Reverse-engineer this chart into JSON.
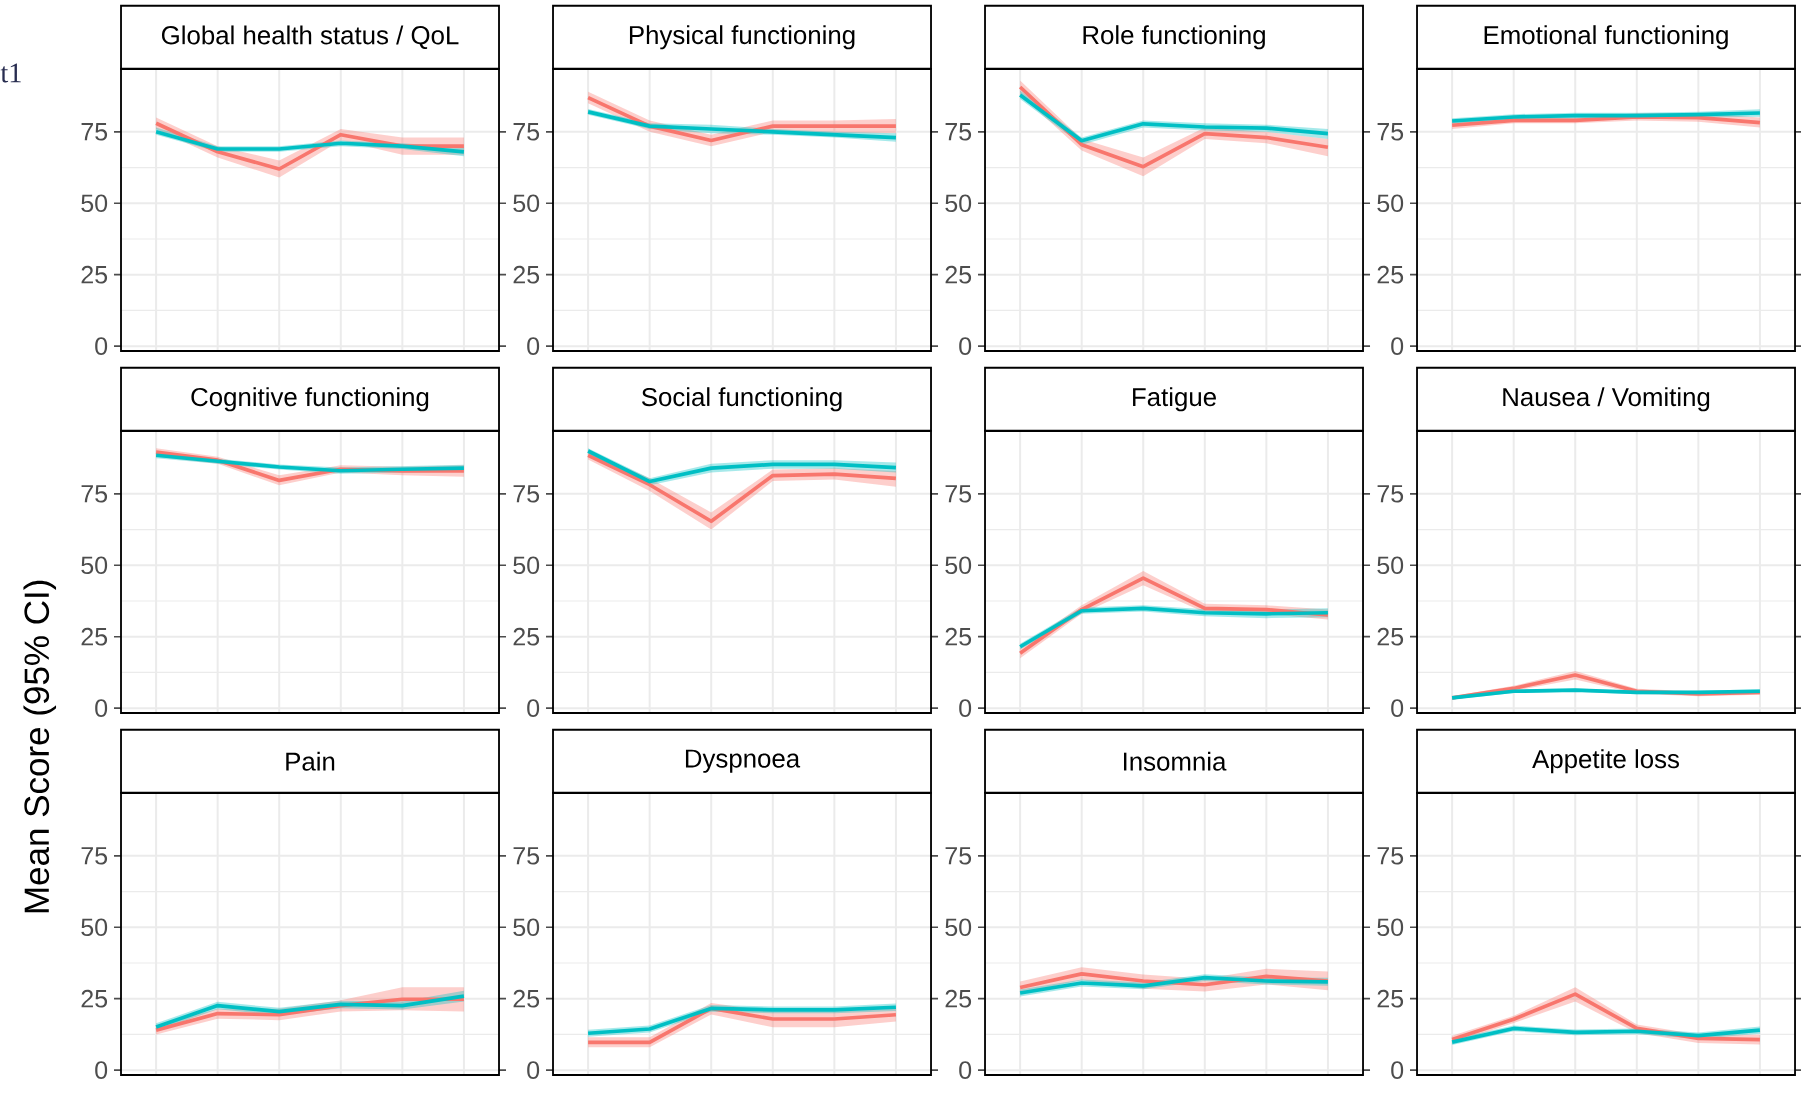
{
  "chart_data": [
    {
      "type": "line",
      "title": "Global health status / QoL",
      "annotations": [
        "t1"
      ],
      "categories": [
        null,
        null,
        null,
        null,
        null,
        null
      ],
      "ylim": [
        -1.7,
        97
      ],
      "yticks": [
        0,
        25,
        50,
        75
      ],
      "grid": true,
      "series": [
        {
          "color": "#f8766d",
          "values": [
            78,
            68,
            62,
            74,
            70,
            70
          ],
          "lower": [
            76,
            66,
            59,
            72,
            67,
            67
          ],
          "upper": [
            80,
            70,
            65,
            76,
            73,
            73
          ]
        },
        {
          "color": "#00bfc4",
          "values": [
            75,
            69,
            69,
            71,
            70,
            68
          ],
          "lower": [
            74,
            68,
            68,
            70,
            69,
            66.5
          ],
          "upper": [
            76.5,
            70,
            70,
            72,
            71,
            69.5
          ]
        }
      ]
    },
    {
      "type": "line",
      "title": "Physical functioning",
      "categories": [
        null,
        null,
        null,
        null,
        null,
        null
      ],
      "ylim": [
        -1.7,
        97
      ],
      "yticks": [
        0,
        25,
        50,
        75
      ],
      "grid": true,
      "series": [
        {
          "color": "#f8766d",
          "values": [
            87,
            77,
            72,
            77,
            77,
            77
          ],
          "lower": [
            85,
            75,
            70,
            75,
            74.5,
            74.5
          ],
          "upper": [
            89,
            79,
            74,
            79,
            79,
            79.5
          ]
        },
        {
          "color": "#00bfc4",
          "values": [
            82,
            77,
            76,
            75,
            74,
            73
          ],
          "lower": [
            81,
            76,
            74.5,
            74,
            73,
            71.5
          ],
          "upper": [
            83,
            78,
            77.5,
            76,
            75,
            74.5
          ]
        }
      ]
    },
    {
      "type": "line",
      "title": "Role functioning",
      "categories": [
        null,
        null,
        null,
        null,
        null,
        null
      ],
      "ylim": [
        -1.7,
        97
      ],
      "yticks": [
        0,
        25,
        50,
        75
      ],
      "grid": true,
      "series": [
        {
          "color": "#f8766d",
          "values": [
            90.7,
            70.5,
            62.8,
            74.4,
            73,
            69.6
          ],
          "lower": [
            88,
            68.5,
            59.5,
            72.5,
            71,
            66.5
          ],
          "upper": [
            93,
            72.5,
            66,
            76.5,
            75,
            72.5
          ]
        },
        {
          "color": "#00bfc4",
          "values": [
            87.9,
            71.9,
            77.8,
            76.7,
            76.3,
            74.4
          ],
          "lower": [
            86.5,
            70.5,
            76.5,
            75.5,
            75,
            72.5
          ],
          "upper": [
            89.5,
            73,
            79,
            78,
            77.5,
            76
          ]
        }
      ]
    },
    {
      "type": "line",
      "title": "Emotional functioning",
      "categories": [
        null,
        null,
        null,
        null,
        null,
        null
      ],
      "ylim": [
        -1.7,
        97
      ],
      "yticks": [
        0,
        25,
        50,
        75
      ],
      "grid": true,
      "series": [
        {
          "color": "#f8766d",
          "values": [
            77.3,
            79,
            79,
            80.2,
            80,
            78.2
          ],
          "lower": [
            76,
            78,
            78,
            79,
            78.5,
            76.5
          ],
          "upper": [
            78.5,
            80,
            80,
            81.5,
            81.5,
            80
          ]
        },
        {
          "color": "#00bfc4",
          "values": [
            78.8,
            80.2,
            80.7,
            80.7,
            81,
            81.6
          ],
          "lower": [
            77.8,
            79.2,
            79.7,
            79.7,
            80,
            80.3
          ],
          "upper": [
            79.8,
            81.2,
            81.7,
            81.7,
            82,
            82.9
          ]
        }
      ]
    },
    {
      "type": "line",
      "title": "Cognitive functioning",
      "ylabel": "Mean Score (95% CI)",
      "categories": [
        null,
        null,
        null,
        null,
        null,
        null
      ],
      "ylim": [
        -1.7,
        97
      ],
      "yticks": [
        0,
        25,
        50,
        75
      ],
      "grid": true,
      "series": [
        {
          "color": "#f8766d",
          "values": [
            89.6,
            86.8,
            79.7,
            83.6,
            83,
            83
          ],
          "lower": [
            88,
            85.5,
            78,
            82.5,
            81.5,
            81
          ],
          "upper": [
            91,
            88,
            81.5,
            85,
            84.5,
            85
          ]
        },
        {
          "color": "#00bfc4",
          "values": [
            88.5,
            86.4,
            84.4,
            83.1,
            83.6,
            84
          ],
          "lower": [
            87.5,
            85.5,
            83.5,
            82,
            82.5,
            82.8
          ],
          "upper": [
            89.5,
            87.3,
            85.3,
            84.2,
            84.7,
            85.2
          ]
        }
      ]
    },
    {
      "type": "line",
      "title": "Social functioning",
      "categories": [
        null,
        null,
        null,
        null,
        null,
        null
      ],
      "ylim": [
        -1.7,
        97
      ],
      "yticks": [
        0,
        25,
        50,
        75
      ],
      "grid": true,
      "series": [
        {
          "color": "#f8766d",
          "values": [
            88.5,
            78.2,
            65.4,
            81.4,
            81.9,
            80.4
          ],
          "lower": [
            87,
            76,
            62.5,
            79.5,
            80,
            77.5
          ],
          "upper": [
            90,
            80.5,
            68.5,
            83.5,
            84,
            83
          ]
        },
        {
          "color": "#00bfc4",
          "values": [
            90,
            79.3,
            84,
            85.3,
            85.3,
            84.2
          ],
          "lower": [
            89,
            78,
            82.5,
            83.8,
            83.8,
            82.5
          ],
          "upper": [
            91,
            80.5,
            85.5,
            86.8,
            86.8,
            86
          ]
        }
      ]
    },
    {
      "type": "line",
      "title": "Fatigue",
      "categories": [
        null,
        null,
        null,
        null,
        null,
        null
      ],
      "ylim": [
        -1.7,
        97
      ],
      "yticks": [
        0,
        25,
        50,
        75
      ],
      "grid": true,
      "series": [
        {
          "color": "#f8766d",
          "values": [
            19.2,
            34.5,
            45.5,
            34.9,
            34.5,
            32.6
          ],
          "lower": [
            17.5,
            33,
            43,
            33.5,
            33,
            31
          ],
          "upper": [
            21,
            36,
            48,
            36.5,
            36,
            34.5
          ]
        },
        {
          "color": "#00bfc4",
          "values": [
            21.5,
            34.1,
            34.9,
            33.4,
            33,
            33.4
          ],
          "lower": [
            20.5,
            33,
            33.8,
            32.2,
            31.5,
            31.8
          ],
          "upper": [
            22.5,
            35.2,
            36,
            34.6,
            34.5,
            35
          ]
        }
      ]
    },
    {
      "type": "line",
      "title": "Nausea / Vomiting",
      "categories": [
        null,
        null,
        null,
        null,
        null,
        null
      ],
      "ylim": [
        -1.7,
        97
      ],
      "yticks": [
        0,
        25,
        50,
        75
      ],
      "grid": true,
      "series": [
        {
          "color": "#f8766d",
          "values": [
            3.6,
            6.9,
            11.6,
            5.9,
            5,
            5.5
          ],
          "lower": [
            3,
            6,
            10,
            5,
            4.2,
            4.7
          ],
          "upper": [
            4.2,
            7.8,
            13,
            6.8,
            5.8,
            6.3
          ]
        },
        {
          "color": "#00bfc4",
          "values": [
            3.6,
            5.9,
            6.3,
            5.5,
            5.5,
            5.9
          ],
          "lower": [
            3,
            5.3,
            5.7,
            4.9,
            4.9,
            5.2
          ],
          "upper": [
            4.2,
            6.5,
            6.9,
            6.1,
            6.1,
            6.6
          ]
        }
      ]
    },
    {
      "type": "line",
      "title": "Pain",
      "categories": [
        null,
        null,
        null,
        null,
        null,
        null
      ],
      "ylim": [
        -1.7,
        97
      ],
      "yticks": [
        0,
        25,
        50,
        75
      ],
      "grid": true,
      "series": [
        {
          "color": "#f8766d",
          "values": [
            14,
            19.8,
            19.4,
            22.6,
            24.8,
            24.8
          ],
          "lower": [
            12.5,
            18,
            17.5,
            20.5,
            21,
            20.5
          ],
          "upper": [
            15.5,
            21.5,
            21.5,
            24.5,
            29,
            29
          ]
        },
        {
          "color": "#00bfc4",
          "values": [
            15.1,
            22.6,
            20.5,
            23,
            22.6,
            25.9
          ],
          "lower": [
            13.8,
            21.3,
            19.2,
            21.7,
            21.2,
            24
          ],
          "upper": [
            16.4,
            23.9,
            21.8,
            24.3,
            24,
            27.8
          ]
        }
      ]
    },
    {
      "type": "line",
      "title": "Dyspnoea",
      "categories": [
        null,
        null,
        null,
        null,
        null,
        null
      ],
      "ylim": [
        -1.7,
        97
      ],
      "yticks": [
        0,
        25,
        50,
        75
      ],
      "grid": true,
      "series": [
        {
          "color": "#f8766d",
          "values": [
            9.7,
            9.7,
            21.6,
            17.9,
            17.9,
            19.4
          ],
          "lower": [
            8,
            8,
            19.5,
            15,
            15,
            17
          ],
          "upper": [
            11.5,
            11.5,
            23.5,
            20.5,
            20.5,
            21.5
          ]
        },
        {
          "color": "#00bfc4",
          "values": [
            12.9,
            14.4,
            21.6,
            21.1,
            21.1,
            22
          ],
          "lower": [
            11.7,
            13.2,
            20.4,
            19.9,
            19.9,
            20.7
          ],
          "upper": [
            14.1,
            15.6,
            22.8,
            22.3,
            22.3,
            23.3
          ]
        }
      ]
    },
    {
      "type": "line",
      "title": "Insomnia",
      "categories": [
        null,
        null,
        null,
        null,
        null,
        null
      ],
      "ylim": [
        -1.7,
        97
      ],
      "yticks": [
        0,
        25,
        50,
        75
      ],
      "grid": true,
      "series": [
        {
          "color": "#f8766d",
          "values": [
            28.9,
            33.7,
            31.2,
            29.9,
            32.8,
            31.2
          ],
          "lower": [
            27,
            31.5,
            28.5,
            27.5,
            30,
            28
          ],
          "upper": [
            31,
            36,
            33.5,
            32,
            35.5,
            34.5
          ]
        },
        {
          "color": "#00bfc4",
          "values": [
            27,
            30.5,
            29.5,
            32.4,
            31.2,
            30.9
          ],
          "lower": [
            25.8,
            29.3,
            28.3,
            31.2,
            30,
            29.5
          ],
          "upper": [
            28.2,
            31.7,
            30.7,
            33.6,
            32.4,
            32.3
          ]
        }
      ]
    },
    {
      "type": "line",
      "title": "Appetite loss",
      "categories": [
        null,
        null,
        null,
        null,
        null,
        null
      ],
      "ylim": [
        -1.7,
        97
      ],
      "yticks": [
        0,
        25,
        50,
        75
      ],
      "grid": true,
      "series": [
        {
          "color": "#f8766d",
          "values": [
            10.7,
            17.8,
            26.6,
            14.6,
            11.1,
            10.7
          ],
          "lower": [
            9.5,
            16.5,
            24,
            13,
            9.5,
            9
          ],
          "upper": [
            12,
            19,
            29,
            16,
            12.5,
            12.4
          ]
        },
        {
          "color": "#00bfc4",
          "values": [
            9.8,
            14.6,
            13.2,
            13.6,
            12.1,
            14
          ],
          "lower": [
            8.8,
            13.6,
            12.2,
            12.6,
            11,
            12.7
          ],
          "upper": [
            10.8,
            15.6,
            14.2,
            14.6,
            13.2,
            15.3
          ]
        }
      ]
    }
  ]
}
